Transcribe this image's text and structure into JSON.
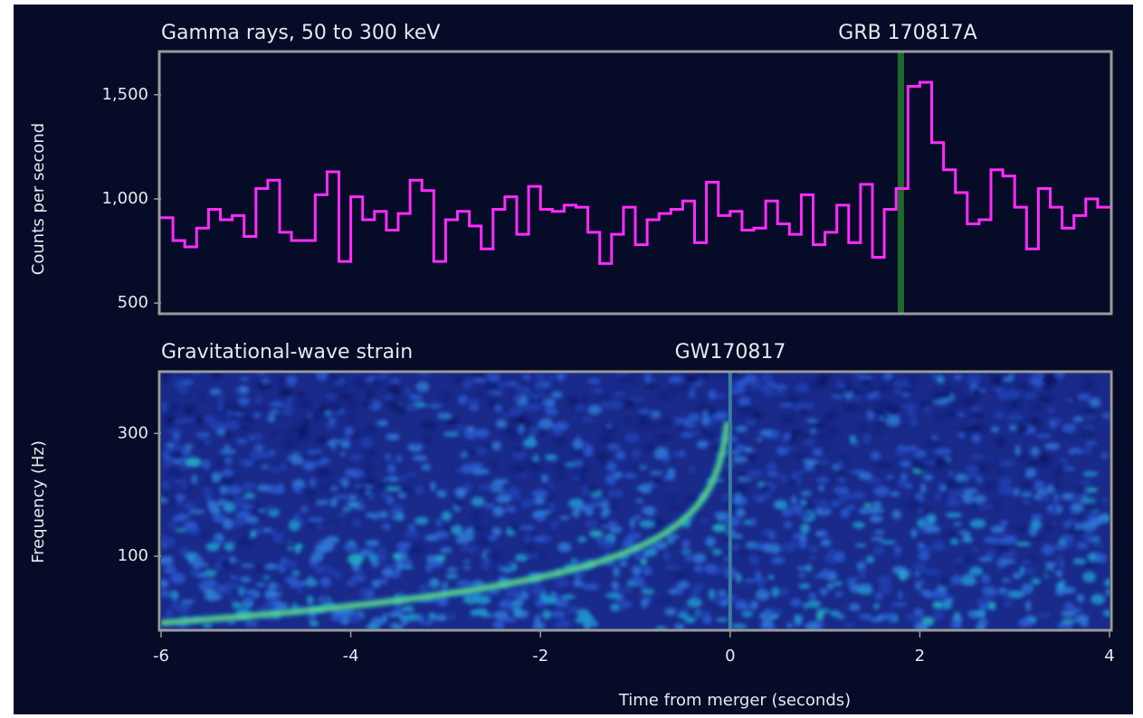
{
  "chart_data": [
    {
      "type": "histogram",
      "title": "Gamma rays, 50 to 300 keV",
      "annotation": "GRB 170817A",
      "ylabel": "Counts per second",
      "color": "#ff2bff",
      "bins": [
        -6,
        -5.875,
        -5.75,
        -5.625,
        -5.5,
        -5.375,
        -5.25,
        -5.125,
        -5,
        -4.875,
        -4.75,
        -4.625,
        -4.5,
        -4.375,
        -4.25,
        -4.125,
        -4,
        -3.875,
        -3.75,
        -3.625,
        -3.5,
        -3.375,
        -3.25,
        -3.125,
        -3,
        -2.875,
        -2.75,
        -2.625,
        -2.5,
        -2.375,
        -2.25,
        -2.125,
        -2,
        -1.875,
        -1.75,
        -1.625,
        -1.5,
        -1.375,
        -1.25,
        -1.125,
        -1,
        -0.875,
        -0.75,
        -0.625,
        -0.5,
        -0.375,
        -0.25,
        -0.125,
        0,
        0.125,
        0.25,
        0.375,
        0.5,
        0.625,
        0.75,
        0.875,
        1,
        1.125,
        1.25,
        1.375,
        1.5,
        1.625,
        1.75,
        1.875,
        2,
        2.125,
        2.25,
        2.375,
        2.5,
        2.625,
        2.75,
        2.875,
        3,
        3.125,
        3.25,
        3.375,
        3.5,
        3.625,
        3.75,
        3.875,
        4
      ],
      "values": [
        910,
        800,
        770,
        860,
        950,
        900,
        920,
        820,
        1050,
        1090,
        840,
        800,
        800,
        1020,
        1130,
        700,
        1010,
        900,
        940,
        850,
        930,
        1090,
        1040,
        700,
        900,
        940,
        870,
        760,
        950,
        1010,
        830,
        1060,
        950,
        940,
        970,
        960,
        840,
        690,
        830,
        960,
        780,
        900,
        930,
        950,
        990,
        790,
        1080,
        920,
        940,
        850,
        860,
        990,
        880,
        830,
        1020,
        780,
        840,
        970,
        790,
        1070,
        720,
        950,
        1050,
        1540,
        1560,
        1270,
        1140,
        1030,
        880,
        900,
        1140,
        1110,
        960,
        760,
        1050,
        960,
        860,
        920,
        1000,
        960
      ],
      "xlim": [
        -6,
        4
      ],
      "ylim": [
        453,
        1703
      ],
      "yticks": [
        500,
        {
          "value": 1000,
          "label": "1,000"
        },
        {
          "value": 1500,
          "label": "1,500"
        }
      ],
      "marker_x": 1.8,
      "marker_color": "#1e6a2c"
    },
    {
      "type": "spectrogram",
      "title": "Gravitational-wave strain",
      "annotation": "GW170817",
      "ylabel": "Frequency (Hz)",
      "xlabel": "Time from merger (seconds)",
      "xlim": [
        -6,
        4
      ],
      "xticks": [
        -6,
        -4,
        -2,
        0,
        2,
        4
      ],
      "ylim": [
        52,
        517
      ],
      "yticks": [
        100,
        300
      ],
      "log_y": true,
      "marker_x": 0,
      "marker_color": "#3b7f9c"
    }
  ]
}
